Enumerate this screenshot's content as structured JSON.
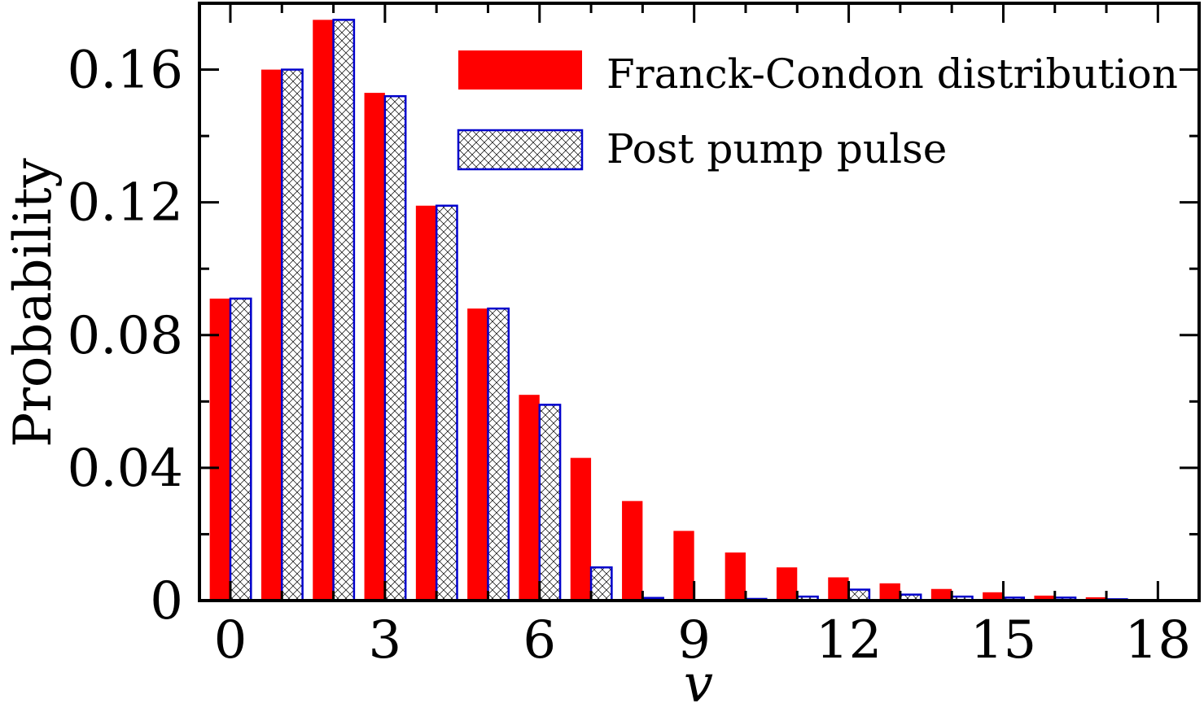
{
  "chart_data": {
    "type": "bar",
    "xlabel": "v",
    "ylabel": "Probability",
    "xlim": [
      -0.6,
      18.8
    ],
    "ylim": [
      0,
      0.18
    ],
    "x_ticks": [
      0,
      3,
      6,
      9,
      12,
      15,
      18
    ],
    "x_tick_labels": [
      "0",
      "3",
      "6",
      "9",
      "12",
      "15",
      "18"
    ],
    "y_ticks": [
      0,
      0.04,
      0.08,
      0.12,
      0.16
    ],
    "y_tick_labels": [
      "0",
      "0.04",
      "0.08",
      "0.12",
      "0.16"
    ],
    "legend_position": "top-right",
    "grid": false,
    "x": [
      0,
      1,
      2,
      3,
      4,
      5,
      6,
      7,
      8,
      9,
      10,
      11,
      12,
      13,
      14,
      15,
      16,
      17
    ],
    "series": [
      {
        "name": "Franck-Condon distribution",
        "color": "#ff0000",
        "style": "solid",
        "values": [
          0.091,
          0.16,
          0.175,
          0.153,
          0.119,
          0.088,
          0.062,
          0.043,
          0.03,
          0.021,
          0.0145,
          0.01,
          0.007,
          0.0052,
          0.0035,
          0.0025,
          0.0015,
          0.001
        ]
      },
      {
        "name": "Post pump pulse",
        "color": "#0000cc",
        "style": "crosshatch",
        "values": [
          0.091,
          0.16,
          0.175,
          0.152,
          0.119,
          0.088,
          0.059,
          0.01,
          0.0008,
          0,
          0.0005,
          0.0012,
          0.0033,
          0.0018,
          0.0012,
          0.0009,
          0.0009,
          0.0004
        ]
      }
    ]
  }
}
